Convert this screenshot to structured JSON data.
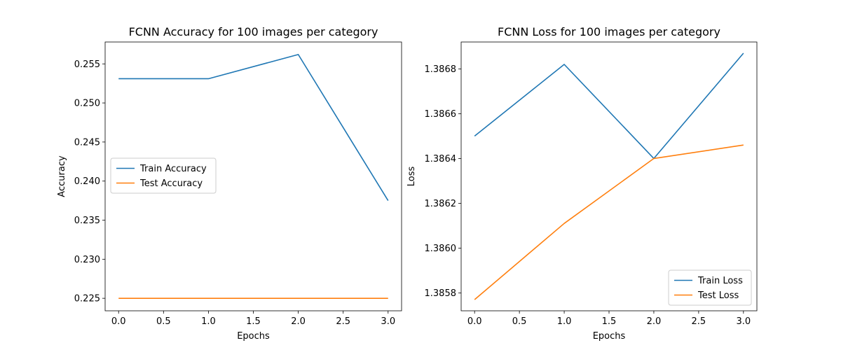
{
  "chart_data": [
    {
      "type": "line",
      "title": "FCNN Accuracy for 100 images per category",
      "xlabel": "Epochs",
      "ylabel": "Accuracy",
      "xlim": [
        -0.15,
        3.15
      ],
      "ylim": [
        0.2234,
        0.2578
      ],
      "xticks": [
        0.0,
        0.5,
        1.0,
        1.5,
        2.0,
        2.5,
        3.0
      ],
      "xtick_labels": [
        "0.0",
        "0.5",
        "1.0",
        "1.5",
        "2.0",
        "2.5",
        "3.0"
      ],
      "yticks": [
        0.225,
        0.23,
        0.235,
        0.24,
        0.245,
        0.25,
        0.255
      ],
      "ytick_labels": [
        "0.225",
        "0.230",
        "0.235",
        "0.240",
        "0.245",
        "0.250",
        "0.255"
      ],
      "grid": false,
      "legend_position": "center-left",
      "x": [
        0,
        1,
        2,
        3
      ],
      "series": [
        {
          "name": "Train Accuracy",
          "color": "#1f77b4",
          "values": [
            0.2531,
            0.2531,
            0.2562,
            0.2375
          ]
        },
        {
          "name": "Test Accuracy",
          "color": "#ff7f0e",
          "values": [
            0.225,
            0.225,
            0.225,
            0.225
          ]
        }
      ]
    },
    {
      "type": "line",
      "title": "FCNN Loss for 100 images per category",
      "xlabel": "Epochs",
      "ylabel": "Loss",
      "xlim": [
        -0.15,
        3.15
      ],
      "ylim": [
        1.38572,
        1.38692
      ],
      "xticks": [
        0.0,
        0.5,
        1.0,
        1.5,
        2.0,
        2.5,
        3.0
      ],
      "xtick_labels": [
        "0.0",
        "0.5",
        "1.0",
        "1.5",
        "2.0",
        "2.5",
        "3.0"
      ],
      "yticks": [
        1.3858,
        1.386,
        1.3862,
        1.3864,
        1.3866,
        1.3868
      ],
      "ytick_labels": [
        "1.3858",
        "1.3860",
        "1.3862",
        "1.3864",
        "1.3866",
        "1.3868"
      ],
      "grid": false,
      "legend_position": "lower-right",
      "x": [
        0,
        1,
        2,
        3
      ],
      "series": [
        {
          "name": "Train Loss",
          "color": "#1f77b4",
          "values": [
            1.3865,
            1.38682,
            1.3864,
            1.38687
          ]
        },
        {
          "name": "Test Loss",
          "color": "#ff7f0e",
          "values": [
            1.38577,
            1.38611,
            1.3864,
            1.38646
          ]
        }
      ]
    }
  ]
}
